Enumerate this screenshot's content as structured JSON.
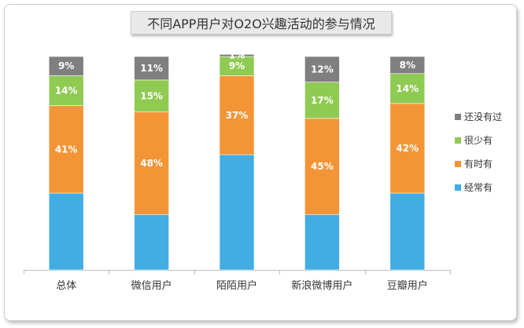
{
  "chart_data": {
    "type": "bar",
    "stacked": true,
    "title": "不同APP用户对O2O兴趣活动的参与情况",
    "categories": [
      "总体",
      "微信用户",
      "陌陌用户",
      "新浪微博用户",
      "豆瓣用户"
    ],
    "series": [
      {
        "name": "经常有",
        "color": "#41ade2",
        "values": [
          36,
          26,
          54,
          26,
          36
        ]
      },
      {
        "name": "有时有",
        "color": "#f39536",
        "values": [
          41,
          48,
          37,
          45,
          42
        ]
      },
      {
        "name": "很少有",
        "color": "#8fca52",
        "values": [
          14,
          15,
          9,
          17,
          14
        ]
      },
      {
        "name": "还没有过",
        "color": "#7f7f7f",
        "values": [
          9,
          11,
          1,
          12,
          8
        ]
      }
    ],
    "data_labels": {
      "经常有": [
        "",
        "",
        "",
        "",
        ""
      ],
      "有时有": [
        "41%",
        "48%",
        "37%",
        "45%",
        "42%"
      ],
      "很少有": [
        "14%",
        "15%",
        "9%",
        "17%",
        "14%"
      ],
      "还没有过": [
        "9%",
        "11%",
        "1%",
        "12%",
        "8%"
      ]
    },
    "legend_order": [
      "还没有过",
      "很少有",
      "有时有",
      "经常有"
    ],
    "legend_position": "right",
    "ylim": [
      0,
      100
    ],
    "grid": false
  }
}
